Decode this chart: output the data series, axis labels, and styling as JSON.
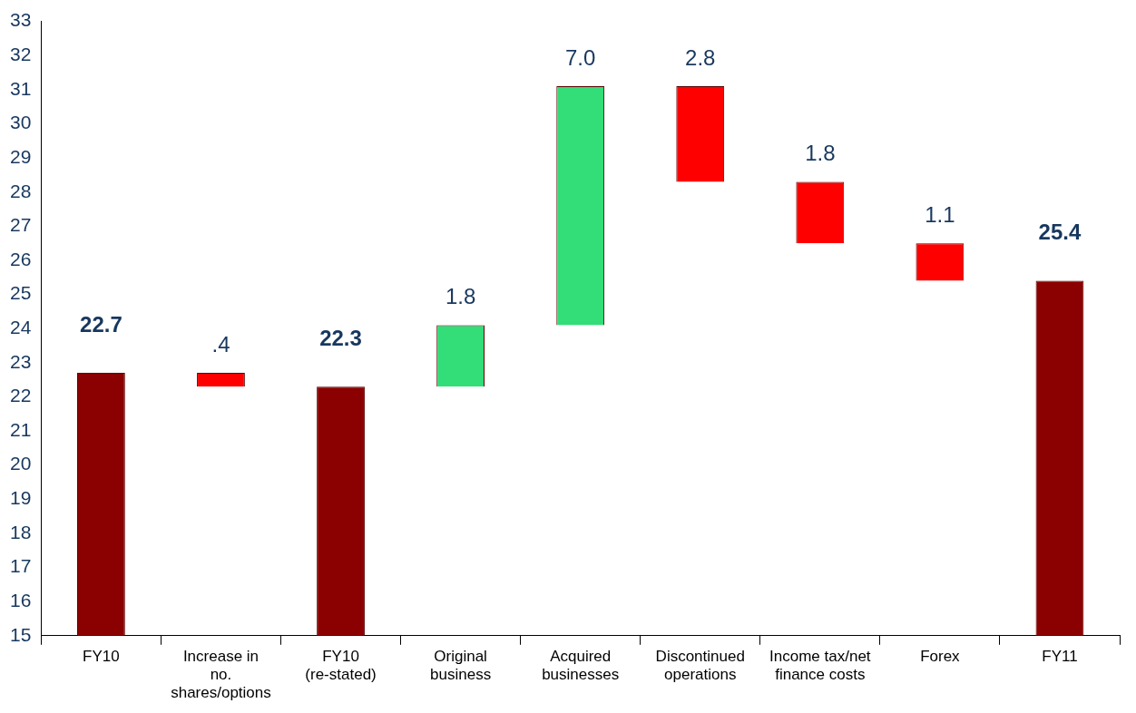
{
  "chart_data": {
    "type": "bar",
    "categories": [
      "FY10",
      "Increase in no. shares/options",
      "FY10 (re-stated)",
      "Original business",
      "Acquired businesses",
      "Discontinued operations",
      "Income tax/net finance costs",
      "Forex",
      "FY11"
    ],
    "base": [
      15,
      22.7,
      15,
      22.3,
      24.1,
      31.1,
      28.3,
      26.5,
      15
    ],
    "values": [
      7.7,
      -0.4,
      7.3,
      1.8,
      7.0,
      -2.8,
      -1.8,
      -1.1,
      10.4
    ],
    "colors": [
      "#8b0000",
      "#ff0000",
      "#8b0000",
      "#33dd77",
      "#33dd77",
      "#ff0000",
      "#ff0000",
      "#ff0000",
      "#8b0000"
    ],
    "value_labels": [
      "22.7",
      ".4",
      "22.3",
      "1.8",
      "7.0",
      "2.8",
      "1.8",
      "1.1",
      "25.4"
    ],
    "ylim": [
      15,
      33
    ],
    "yticks": [
      15,
      16,
      17,
      18,
      19,
      20,
      21,
      22,
      23,
      24,
      25,
      26,
      27,
      28,
      29,
      30,
      31,
      32,
      33
    ],
    "grid": false,
    "legend": false
  }
}
